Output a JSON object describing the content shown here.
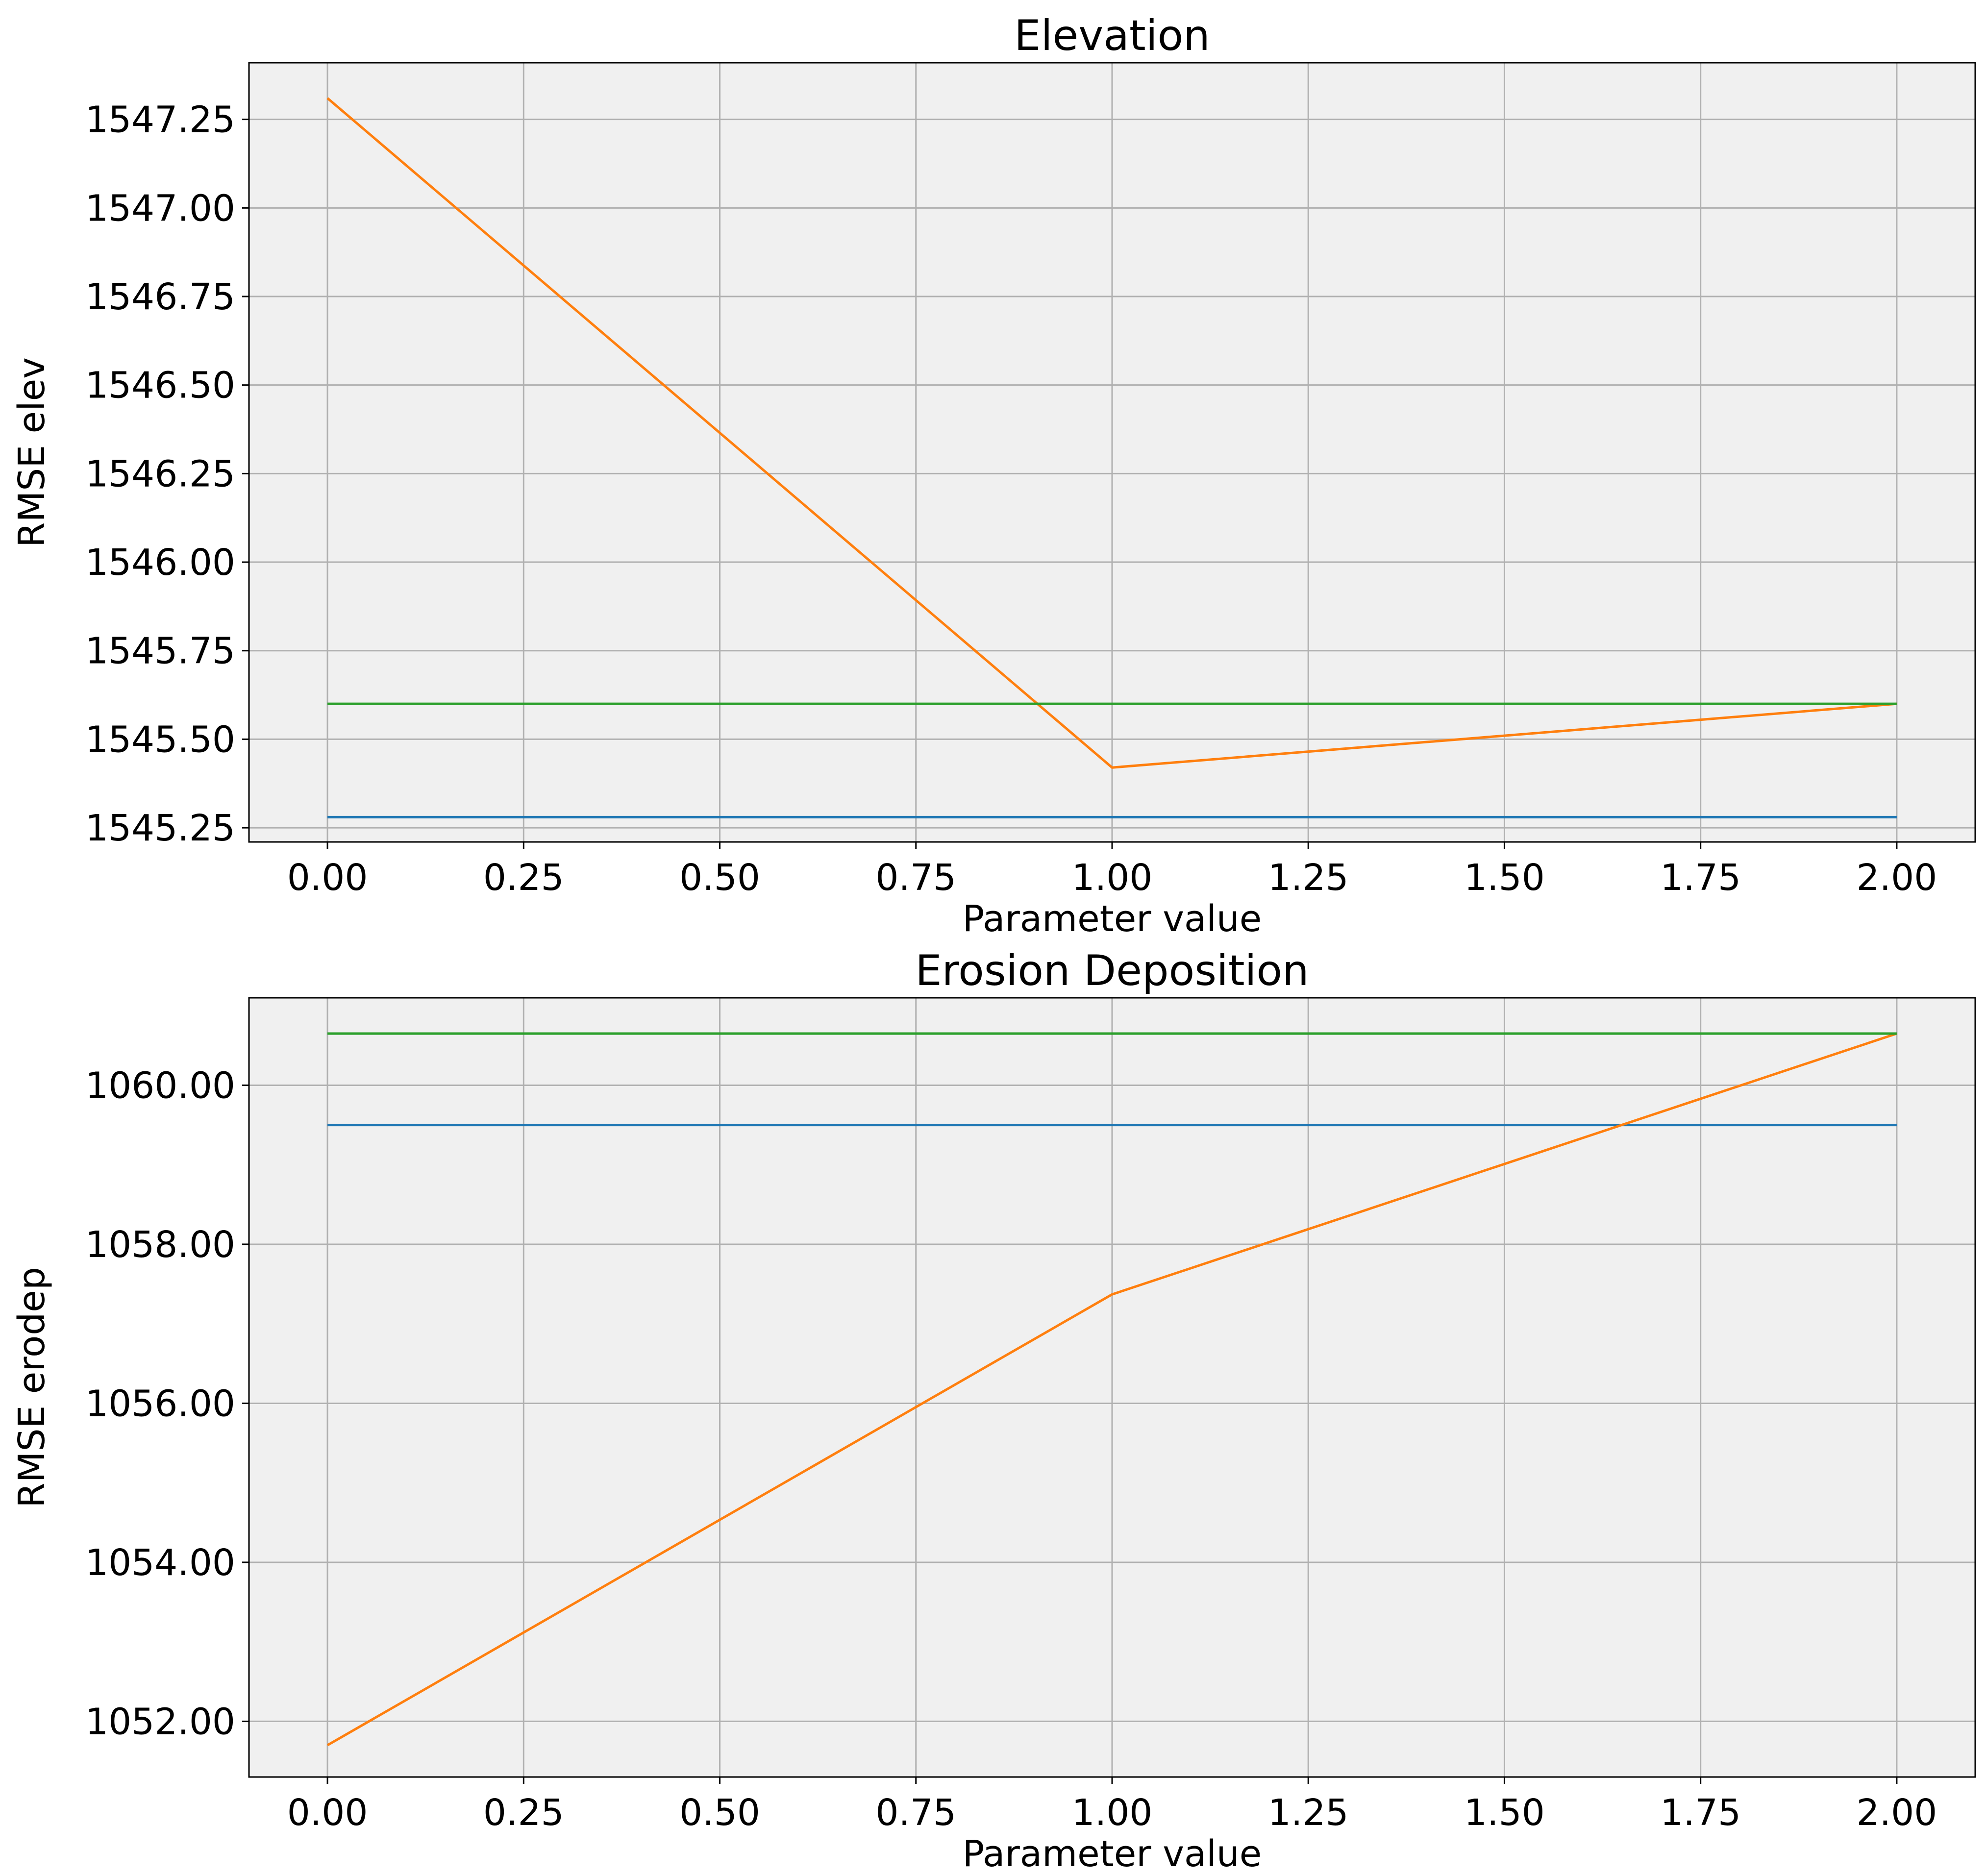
{
  "chart_data": [
    {
      "type": "line",
      "title": "Elevation",
      "xlabel": "Parameter value",
      "ylabel": "RMSE elev",
      "xlim": [
        -0.1,
        2.1
      ],
      "ylim": [
        1545.21,
        1547.41
      ],
      "xticks": [
        0,
        0.25,
        0.5,
        0.75,
        1,
        1.25,
        1.5,
        1.75,
        2
      ],
      "xtick_labels": [
        "0.00",
        "0.25",
        "0.50",
        "0.75",
        "1.00",
        "1.25",
        "1.50",
        "1.75",
        "2.00"
      ],
      "yticks": [
        1545.25,
        1545.5,
        1545.75,
        1546.0,
        1546.25,
        1546.5,
        1546.75,
        1547.0,
        1547.25
      ],
      "ytick_labels": [
        "1545.25",
        "1545.50",
        "1545.75",
        "1546.00",
        "1546.25",
        "1546.50",
        "1546.75",
        "1547.00",
        "1547.25"
      ],
      "grid": true,
      "x": [
        0,
        1,
        2
      ],
      "series": [
        {
          "color": "#1f77b4",
          "values": [
            1545.28,
            1545.28,
            1545.28
          ]
        },
        {
          "color": "#ff7f0e",
          "values": [
            1547.31,
            1545.42,
            1545.6
          ]
        },
        {
          "color": "#2ca02c",
          "values": [
            1545.6,
            1545.6,
            1545.6
          ]
        }
      ]
    },
    {
      "type": "line",
      "title": "Erosion Deposition",
      "xlabel": "Parameter value",
      "ylabel": "RMSE erodep",
      "xlim": [
        -0.1,
        2.1
      ],
      "ylim": [
        1051.3,
        1061.1
      ],
      "xticks": [
        0,
        0.25,
        0.5,
        0.75,
        1,
        1.25,
        1.5,
        1.75,
        2
      ],
      "xtick_labels": [
        "0.00",
        "0.25",
        "0.50",
        "0.75",
        "1.00",
        "1.25",
        "1.50",
        "1.75",
        "2.00"
      ],
      "yticks": [
        1052,
        1054,
        1056,
        1058,
        1060
      ],
      "ytick_labels": [
        "1052.00",
        "1054.00",
        "1056.00",
        "1058.00",
        "1060.00"
      ],
      "grid": true,
      "x": [
        0,
        1,
        2
      ],
      "series": [
        {
          "color": "#1f77b4",
          "values": [
            1059.5,
            1059.5,
            1059.5
          ]
        },
        {
          "color": "#ff7f0e",
          "values": [
            1051.7,
            1057.37,
            1060.65
          ]
        },
        {
          "color": "#2ca02c",
          "values": [
            1060.65,
            1060.65,
            1060.65
          ]
        }
      ]
    }
  ]
}
